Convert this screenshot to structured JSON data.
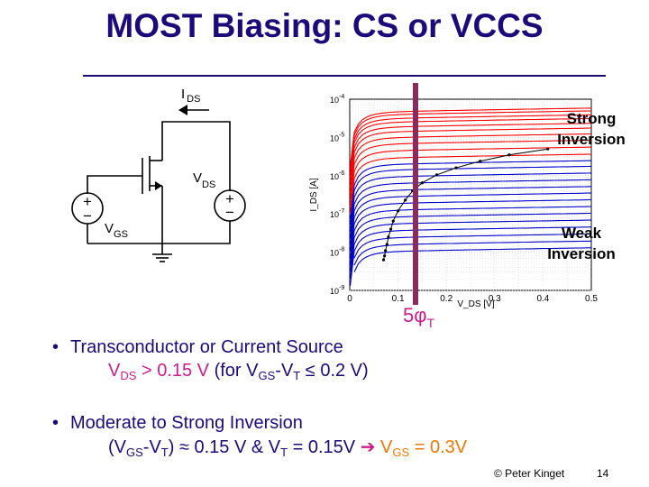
{
  "title": "MOST Biasing: CS or VCCS",
  "circuit": {
    "ids_label": "I",
    "ids_sub": "DS",
    "vds_label": "V",
    "vds_sub": "DS",
    "vgs_label": "V",
    "vgs_sub": "GS",
    "plus": "+",
    "minus": "−"
  },
  "chart_data": {
    "type": "line",
    "xlabel": "V_DS [V]",
    "ylabel": "I_DS [A]",
    "xlim": [
      0,
      0.5
    ],
    "ylim": [
      1e-09,
      0.0001
    ],
    "yscale": "log",
    "x_ticks": [
      "0",
      "0.1",
      "0.2",
      "0.3",
      "0.4",
      "0.5"
    ],
    "y_ticks": [
      {
        "base": "10",
        "exp": "-9"
      },
      {
        "base": "10",
        "exp": "-8"
      },
      {
        "base": "10",
        "exp": "-7"
      },
      {
        "base": "10",
        "exp": "-6"
      },
      {
        "base": "10",
        "exp": "-5"
      },
      {
        "base": "10",
        "exp": "-4"
      }
    ],
    "grid": true,
    "strong_curves_color": "#ff0000",
    "weak_curves_color": "#0000cc",
    "marker_line_color": "#8b2a5c",
    "strong_sat_currents": [
      4.5e-05,
      3.8e-05,
      3e-05,
      2.4e-05,
      1.8e-05,
      1.35e-05,
      9.5e-06,
      6.5e-06,
      4.3e-06,
      2.8e-06
    ],
    "weak_sat_currents": [
      1.9e-06,
      1.35e-06,
      9e-07,
      6e-07,
      4e-07,
      2.7e-07,
      1.8e-07,
      1.2e-07,
      8e-08,
      5.3e-08,
      3.5e-08,
      2.3e-08,
      1.5e-08,
      1e-08
    ],
    "dotted_curve": [
      [
        0.07,
        6.3e-09
      ],
      [
        0.072,
        8e-09
      ],
      [
        0.074,
        1.1e-08
      ],
      [
        0.077,
        1.6e-08
      ],
      [
        0.08,
        2.5e-08
      ],
      [
        0.085,
        4e-08
      ],
      [
        0.09,
        6.5e-08
      ],
      [
        0.1,
        1.2e-07
      ],
      [
        0.115,
        2.3e-07
      ],
      [
        0.13,
        4e-07
      ],
      [
        0.15,
        6.5e-07
      ],
      [
        0.18,
        1.05e-06
      ],
      [
        0.22,
        1.6e-06
      ],
      [
        0.27,
        2.4e-06
      ],
      [
        0.33,
        3.5e-06
      ],
      [
        0.41,
        5e-06
      ]
    ],
    "annotations": [
      "Strong",
      "Inversion",
      "Weak",
      "Inversion",
      "5φ",
      "T"
    ]
  },
  "bullets": [
    {
      "marker": "•",
      "line1": "Transconductor or Current Source",
      "l2_a": "V",
      "l2_a_sub": "DS",
      "l2_b": " > 0.15 V",
      "l2_c": " (for V",
      "l2_c_sub": "GS",
      "l2_d": "-V",
      "l2_d_sub": "T",
      "l2_e": " ≤ 0.2 V)"
    },
    {
      "marker": "•",
      "line1": "Moderate to Strong Inversion",
      "l2_a": "(V",
      "l2_a_sub": "GS",
      "l2_b": "-V",
      "l2_b_sub": "T",
      "l2_c": ") ≈ 0.15 V & V",
      "l2_c_sub": "T",
      "l2_d": " = 0.15V ",
      "arrow": "➔",
      "l2_e": " V",
      "l2_e_sub": "GS",
      "l2_f": " = 0.3V"
    }
  ],
  "footer": "© Peter Kinget",
  "page_number": "14"
}
